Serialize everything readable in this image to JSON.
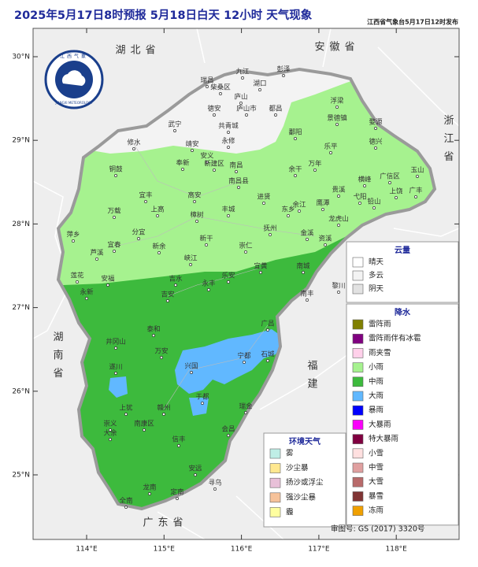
{
  "header": {
    "title": "2025年5月17日8时预报 5月18日白天 12小时 天气现象",
    "publisher": "江西省气象台5月17日12时发布"
  },
  "logo": {
    "name": "江西气象",
    "english": "JIANGXI METEOROLOGY"
  },
  "map": {
    "xticks": [
      {
        "value": 114,
        "label": "114°E"
      },
      {
        "value": 115,
        "label": "115°E"
      },
      {
        "value": 116,
        "label": "116°E"
      },
      {
        "value": 117,
        "label": "117°E"
      },
      {
        "value": 118,
        "label": "118°E"
      }
    ],
    "yticks": [
      {
        "value": 30,
        "label": "30°N"
      },
      {
        "value": 29,
        "label": "29°N"
      },
      {
        "value": 28,
        "label": "28°N"
      },
      {
        "value": 27,
        "label": "27°N"
      },
      {
        "value": 26,
        "label": "26°N"
      },
      {
        "value": 25,
        "label": "25°N"
      }
    ],
    "provinces": [
      "湖北省",
      "安徽省",
      "浙江省",
      "湖南省",
      "福建",
      "广东省"
    ],
    "cities": [
      "九江",
      "彭泽",
      "湖口",
      "瑞昌",
      "柴桑区",
      "庐山",
      "德安",
      "庐山市",
      "都昌",
      "浮梁",
      "景德镇",
      "武宁",
      "共青城",
      "修水",
      "永修",
      "婺源",
      "鄱阳",
      "乐平",
      "德兴",
      "靖安",
      "安义",
      "奉新",
      "新建区",
      "南昌",
      "余干",
      "万年",
      "铜鼓",
      "宜丰",
      "南昌县",
      "进贤",
      "玉山",
      "广信区",
      "上饶",
      "广丰",
      "横峰",
      "弋阳",
      "铅山",
      "贵溪",
      "鹰潭",
      "余江",
      "东乡",
      "龙虎山",
      "万载",
      "上高",
      "高安",
      "丰城",
      "樟树",
      "抚州",
      "金溪",
      "资溪",
      "萍乡",
      "分宜",
      "宜春",
      "新余",
      "芦溪",
      "新干",
      "峡江",
      "崇仁",
      "宜黄",
      "南城",
      "莲花",
      "安福",
      "吉水",
      "吉安",
      "永丰",
      "乐安",
      "南丰",
      "黎川",
      "永新",
      "泰和",
      "井冈山",
      "遂川",
      "万安",
      "兴国",
      "宁都",
      "广昌",
      "石城",
      "于都",
      "瑞金",
      "会昌",
      "赣州",
      "上犹",
      "崇义",
      "大余",
      "南康区",
      "信丰",
      "安远",
      "寻乌",
      "龙南",
      "全南",
      "定南"
    ]
  },
  "legends": [
    {
      "title": "云量",
      "items": [
        {
          "label": "晴天",
          "color": "#ffffff"
        },
        {
          "label": "多云",
          "color": "#f3f3f3"
        },
        {
          "label": "阴天",
          "color": "#e2e2e2"
        }
      ]
    },
    {
      "title": "降水",
      "items": [
        {
          "label": "雷阵雨",
          "color": "#808000"
        },
        {
          "label": "雷阵雨伴有冰雹",
          "color": "#800080"
        },
        {
          "label": "雨夹雪",
          "color": "#ffd0ea"
        },
        {
          "label": "小雨",
          "color": "#a6f28f"
        },
        {
          "label": "中雨",
          "color": "#3dba3d"
        },
        {
          "label": "大雨",
          "color": "#61b8ff"
        },
        {
          "label": "暴雨",
          "color": "#0000fe"
        },
        {
          "label": "大暴雨",
          "color": "#fa00fa"
        },
        {
          "label": "特大暴雨",
          "color": "#800040"
        },
        {
          "label": "小雪",
          "color": "#ffe0e0"
        },
        {
          "label": "中雪",
          "color": "#e0a0a0"
        },
        {
          "label": "大雪",
          "color": "#b86a6a"
        },
        {
          "label": "暴雪",
          "color": "#803434"
        },
        {
          "label": "冻雨",
          "color": "#f0a000"
        }
      ]
    },
    {
      "title": "环境天气",
      "items": [
        {
          "label": "雾",
          "color": "#bfeee6"
        },
        {
          "label": "沙尘暴",
          "color": "#ffe890"
        },
        {
          "label": "扬沙或浮尘",
          "color": "#e8c0d8"
        },
        {
          "label": "强沙尘暴",
          "color": "#f6c29a"
        },
        {
          "label": "霾",
          "color": "#ffffa0"
        }
      ]
    }
  ],
  "footer": {
    "approval": "审图号: GS (2017) 3320号"
  }
}
